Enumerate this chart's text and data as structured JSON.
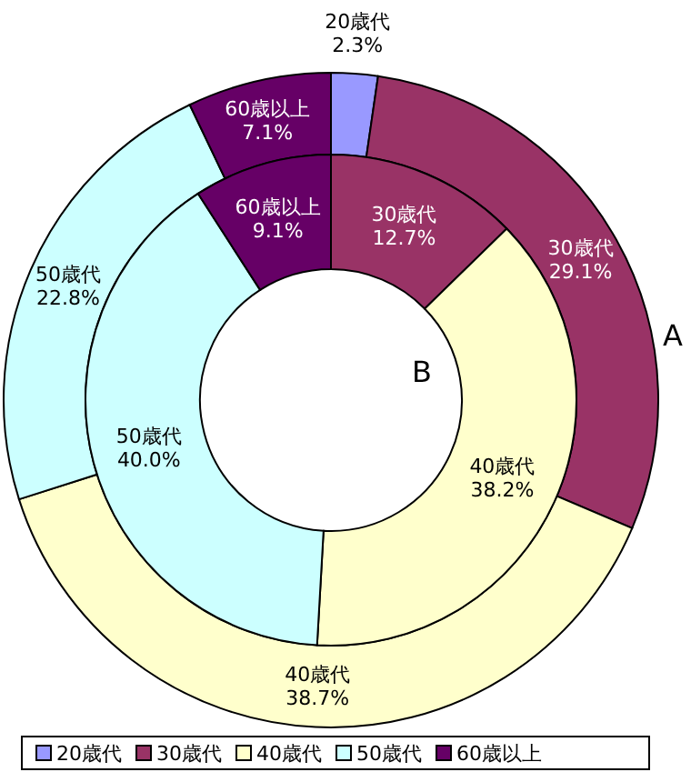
{
  "chart_data": {
    "type": "donut",
    "categories": [
      "20歳代",
      "30歳代",
      "40歳代",
      "50歳代",
      "60歳以上"
    ],
    "colors": [
      "#9999ff",
      "#993366",
      "#ffffcc",
      "#ccffff",
      "#660066"
    ],
    "series": [
      {
        "name": "A",
        "values": [
          2.3,
          29.1,
          38.7,
          22.8,
          7.1
        ],
        "value_labels": [
          "2.3%",
          "29.1%",
          "38.7%",
          "22.8%",
          "7.1%"
        ]
      },
      {
        "name": "B",
        "values": [
          0,
          12.7,
          38.2,
          40.0,
          9.1
        ],
        "value_labels": [
          null,
          "12.7%",
          "38.2%",
          "40.0%",
          "9.1%"
        ]
      }
    ],
    "legend": "bottom"
  }
}
